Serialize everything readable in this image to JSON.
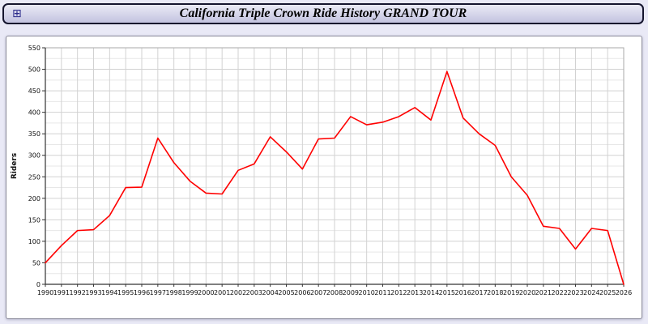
{
  "window": {
    "title": "California Triple Crown Ride History GRAND TOUR",
    "icon": "window-grid-icon"
  },
  "chart_data": {
    "type": "line",
    "title": "California Triple Crown Ride History GRAND TOUR",
    "xlabel": "",
    "ylabel": "Riders",
    "x": [
      1990,
      1991,
      1992,
      1993,
      1994,
      1995,
      1996,
      1997,
      1998,
      1999,
      2000,
      2001,
      2002,
      2003,
      2004,
      2005,
      2006,
      2007,
      2008,
      2009,
      2010,
      2011,
      2012,
      2013,
      2014,
      2015,
      2016,
      2017,
      2018,
      2019,
      2020,
      2021,
      2022,
      2023,
      2024,
      2025,
      2026
    ],
    "series": [
      {
        "name": "Riders",
        "color": "#ff0000",
        "values": [
          50,
          90,
          125,
          127,
          160,
          225,
          226,
          340,
          283,
          240,
          212,
          210,
          265,
          280,
          343,
          308,
          268,
          338,
          340,
          390,
          371,
          377,
          390,
          411,
          382,
          495,
          387,
          350,
          323,
          250,
          207,
          135,
          130,
          82,
          130,
          125,
          0
        ]
      }
    ],
    "ylim": [
      0,
      550
    ],
    "yticks": [
      0,
      50,
      100,
      150,
      200,
      250,
      300,
      350,
      400,
      450,
      500,
      550
    ],
    "ytick_step": 50,
    "minor_y_step": 25,
    "grid": true,
    "legend": "none",
    "colors": {
      "line": "#ff0000",
      "grid_major": "#d2d2d2",
      "grid_minor": "#e7e7e7",
      "axis": "#333333",
      "frame": "#aaaaaa",
      "panel_bg": "#ffffff",
      "page_bg": "#e9e9f6",
      "titlebar_border": "#15152e"
    }
  }
}
